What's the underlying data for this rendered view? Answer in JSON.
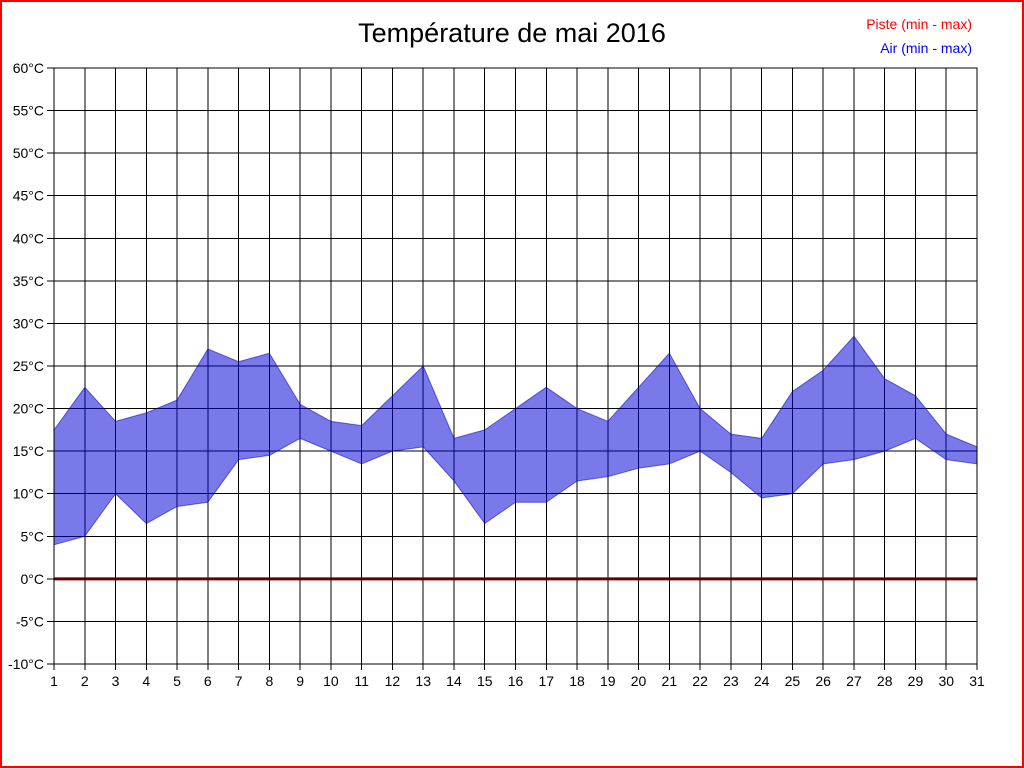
{
  "title": "Température de mai 2016",
  "legend": {
    "piste_label": "Piste (min - max)",
    "piste_color": "#ff0000",
    "air_label": "Air (min - max)",
    "air_color": "#0000ff"
  },
  "chart_data": {
    "type": "area",
    "title": "Température de mai 2016",
    "xlabel": "",
    "ylabel": "",
    "x_categories": [
      "1",
      "2",
      "3",
      "4",
      "5",
      "6",
      "7",
      "8",
      "9",
      "10",
      "11",
      "12",
      "13",
      "14",
      "15",
      "16",
      "17",
      "18",
      "19",
      "20",
      "21",
      "22",
      "23",
      "24",
      "25",
      "26",
      "27",
      "28",
      "29",
      "30",
      "31"
    ],
    "ylim": [
      -10,
      60
    ],
    "ytick_step": 5,
    "ytick_labels": [
      "60°C",
      "55°C",
      "50°C",
      "45°C",
      "40°C",
      "35°C",
      "30°C",
      "25°C",
      "20°C",
      "15°C",
      "10°C",
      "5°C",
      "0°C",
      "-5°C",
      "-10°C"
    ],
    "grid": true,
    "legend_position": "top-right",
    "series": [
      {
        "name": "Air max",
        "values": [
          17.5,
          22.5,
          18.5,
          19.5,
          21,
          27,
          25.5,
          26.5,
          20.5,
          18.5,
          18,
          21.5,
          25,
          16.5,
          17.5,
          20,
          22.5,
          20,
          18.5,
          22.5,
          26.5,
          20,
          17,
          16.5,
          22,
          24.5,
          28.5,
          23.5,
          21.5,
          17,
          15.5
        ]
      },
      {
        "name": "Air min",
        "values": [
          4,
          5,
          10,
          6.5,
          8.5,
          9,
          14,
          14.5,
          16.5,
          15,
          13.5,
          15,
          15.5,
          11.5,
          6.5,
          9,
          9,
          11.5,
          12,
          13,
          13.5,
          15,
          12.5,
          9.5,
          10,
          13.5,
          14,
          15,
          16.5,
          14,
          13.5
        ]
      },
      {
        "name": "Piste max",
        "values": [
          0,
          0,
          0,
          0,
          0,
          0,
          0,
          0,
          0,
          0,
          0,
          0,
          0,
          0,
          0,
          0,
          0,
          0,
          0,
          0,
          0,
          0,
          0,
          0,
          0,
          0,
          0,
          0,
          0,
          0,
          0
        ]
      },
      {
        "name": "Piste min",
        "values": [
          0,
          0,
          0,
          0,
          0,
          0,
          0,
          0,
          0,
          0,
          0,
          0,
          0,
          0,
          0,
          0,
          0,
          0,
          0,
          0,
          0,
          0,
          0,
          0,
          0,
          0,
          0,
          0,
          0,
          0,
          0
        ]
      }
    ],
    "colors": {
      "air_band_fill": "rgba(2,2,215,0.53)",
      "air_band_stroke": "rgba(2,2,180,0.55)",
      "piste_line": "#600000",
      "grid": "#000000",
      "axis": "#000000"
    }
  }
}
